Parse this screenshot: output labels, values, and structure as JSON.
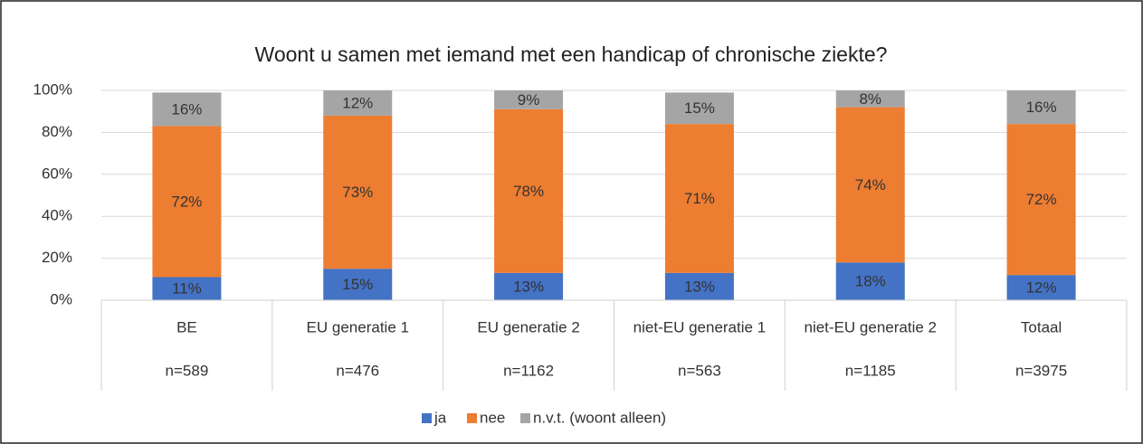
{
  "chart_data": {
    "type": "stacked_bar",
    "title": "Woont u samen met iemand met een handicap of chronische ziekte?",
    "categories": [
      "BE",
      "EU generatie 1",
      "EU generatie 2",
      "niet-EU generatie 1",
      "niet-EU generatie 2",
      "Totaal"
    ],
    "category_counts": [
      "n=589",
      "n=476",
      "n=1162",
      "n=563",
      "n=1185",
      "n=3975"
    ],
    "series": [
      {
        "name": "ja",
        "color": "#4472c4",
        "values": [
          11,
          15,
          13,
          13,
          18,
          12
        ],
        "value_labels": [
          "11%",
          "15%",
          "13%",
          "13%",
          "18%",
          "12%"
        ]
      },
      {
        "name": "nee",
        "color": "#ed7d31",
        "values": [
          72,
          73,
          78,
          71,
          74,
          72
        ],
        "value_labels": [
          "72%",
          "73%",
          "78%",
          "71%",
          "74%",
          "72%"
        ]
      },
      {
        "name": "n.v.t. (woont alleen)",
        "color": "#a5a5a5",
        "values": [
          16,
          12,
          9,
          15,
          8,
          16
        ],
        "value_labels": [
          "16%",
          "12%",
          "9%",
          "15%",
          "8%",
          "16%"
        ]
      }
    ],
    "ylim": [
      0,
      100
    ],
    "yticks": [
      {
        "value": 0,
        "label": "0%"
      },
      {
        "value": 20,
        "label": "20%"
      },
      {
        "value": 40,
        "label": "40%"
      },
      {
        "value": 60,
        "label": "60%"
      },
      {
        "value": 80,
        "label": "80%"
      },
      {
        "value": 100,
        "label": "100%"
      }
    ],
    "grid": true,
    "legend": "bottom"
  }
}
